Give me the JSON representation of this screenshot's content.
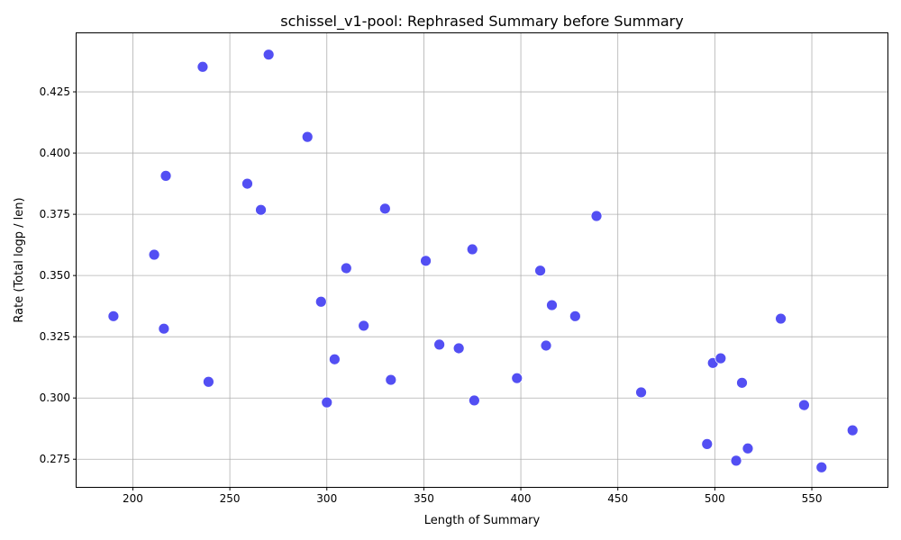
{
  "chart_data": {
    "type": "scatter",
    "title": "schissel_v1-pool: Rephrased Summary before Summary",
    "xlabel": "Length of Summary",
    "ylabel": "Rate (Total logp / len)",
    "xlim": [
      171,
      589
    ],
    "ylim": [
      0.2637,
      0.4489
    ],
    "xticks": [
      200,
      250,
      300,
      350,
      400,
      450,
      500,
      550
    ],
    "yticks": [
      0.275,
      0.3,
      0.325,
      0.35,
      0.375,
      0.4,
      0.425
    ],
    "xtick_labels": [
      "200",
      "250",
      "300",
      "350",
      "400",
      "450",
      "500",
      "550"
    ],
    "ytick_labels": [
      "0.275",
      "0.300",
      "0.325",
      "0.350",
      "0.375",
      "0.400",
      "0.425"
    ],
    "grid": true,
    "marker_color": "#4a46f2",
    "points": [
      {
        "x": 190,
        "y": 0.3334
      },
      {
        "x": 211,
        "y": 0.3585
      },
      {
        "x": 216,
        "y": 0.3283
      },
      {
        "x": 217,
        "y": 0.3907
      },
      {
        "x": 236,
        "y": 0.4352
      },
      {
        "x": 239,
        "y": 0.3066
      },
      {
        "x": 259,
        "y": 0.3875
      },
      {
        "x": 266,
        "y": 0.3768
      },
      {
        "x": 270,
        "y": 0.4402
      },
      {
        "x": 290,
        "y": 0.4066
      },
      {
        "x": 297,
        "y": 0.3393
      },
      {
        "x": 300,
        "y": 0.2982
      },
      {
        "x": 304,
        "y": 0.3158
      },
      {
        "x": 310,
        "y": 0.353
      },
      {
        "x": 319,
        "y": 0.3295
      },
      {
        "x": 330,
        "y": 0.3773
      },
      {
        "x": 333,
        "y": 0.3074
      },
      {
        "x": 351,
        "y": 0.356
      },
      {
        "x": 358,
        "y": 0.3218
      },
      {
        "x": 368,
        "y": 0.3203
      },
      {
        "x": 375,
        "y": 0.3607
      },
      {
        "x": 376,
        "y": 0.299
      },
      {
        "x": 398,
        "y": 0.3081
      },
      {
        "x": 410,
        "y": 0.352
      },
      {
        "x": 413,
        "y": 0.3214
      },
      {
        "x": 416,
        "y": 0.3379
      },
      {
        "x": 428,
        "y": 0.3334
      },
      {
        "x": 439,
        "y": 0.3743
      },
      {
        "x": 462,
        "y": 0.3023
      },
      {
        "x": 496,
        "y": 0.2812
      },
      {
        "x": 499,
        "y": 0.3143
      },
      {
        "x": 503,
        "y": 0.3162
      },
      {
        "x": 511,
        "y": 0.2744
      },
      {
        "x": 514,
        "y": 0.3062
      },
      {
        "x": 517,
        "y": 0.2794
      },
      {
        "x": 534,
        "y": 0.3324
      },
      {
        "x": 546,
        "y": 0.2971
      },
      {
        "x": 555,
        "y": 0.2717
      },
      {
        "x": 571,
        "y": 0.2868
      }
    ]
  }
}
